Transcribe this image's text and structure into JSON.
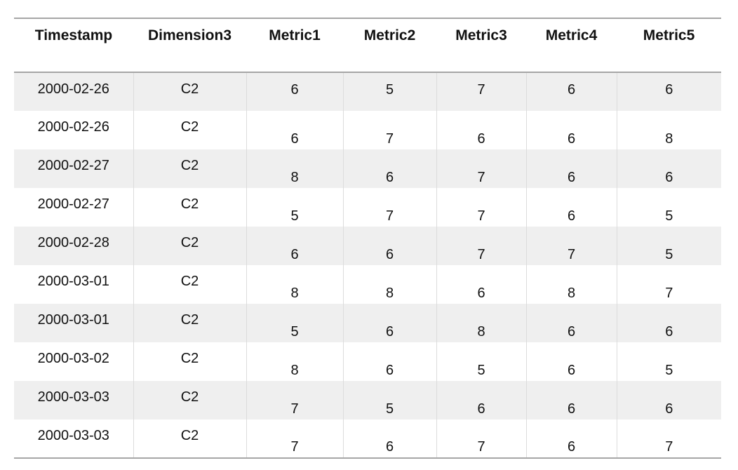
{
  "chart_data": {
    "type": "table",
    "columns": [
      "Timestamp",
      "Dimension3",
      "Metric1",
      "Metric2",
      "Metric3",
      "Metric4",
      "Metric5"
    ],
    "rows": [
      [
        "2000-02-26",
        "C2",
        "6",
        "5",
        "7",
        "6",
        "6"
      ],
      [
        "2000-02-26",
        "C2",
        "6",
        "7",
        "6",
        "6",
        "8"
      ],
      [
        "2000-02-27",
        "C2",
        "8",
        "6",
        "7",
        "6",
        "6"
      ],
      [
        "2000-02-27",
        "C2",
        "5",
        "7",
        "7",
        "6",
        "5"
      ],
      [
        "2000-02-28",
        "C2",
        "6",
        "6",
        "7",
        "7",
        "5"
      ],
      [
        "2000-03-01",
        "C2",
        "8",
        "8",
        "6",
        "8",
        "7"
      ],
      [
        "2000-03-01",
        "C2",
        "5",
        "6",
        "8",
        "6",
        "6"
      ],
      [
        "2000-03-02",
        "C2",
        "8",
        "6",
        "5",
        "6",
        "5"
      ],
      [
        "2000-03-03",
        "C2",
        "7",
        "5",
        "6",
        "6",
        "6"
      ],
      [
        "2000-03-03",
        "C2",
        "7",
        "6",
        "7",
        "6",
        "7"
      ]
    ]
  },
  "style": {
    "header_rule_color": "#a6a6a6",
    "band_color": "#efefef"
  }
}
